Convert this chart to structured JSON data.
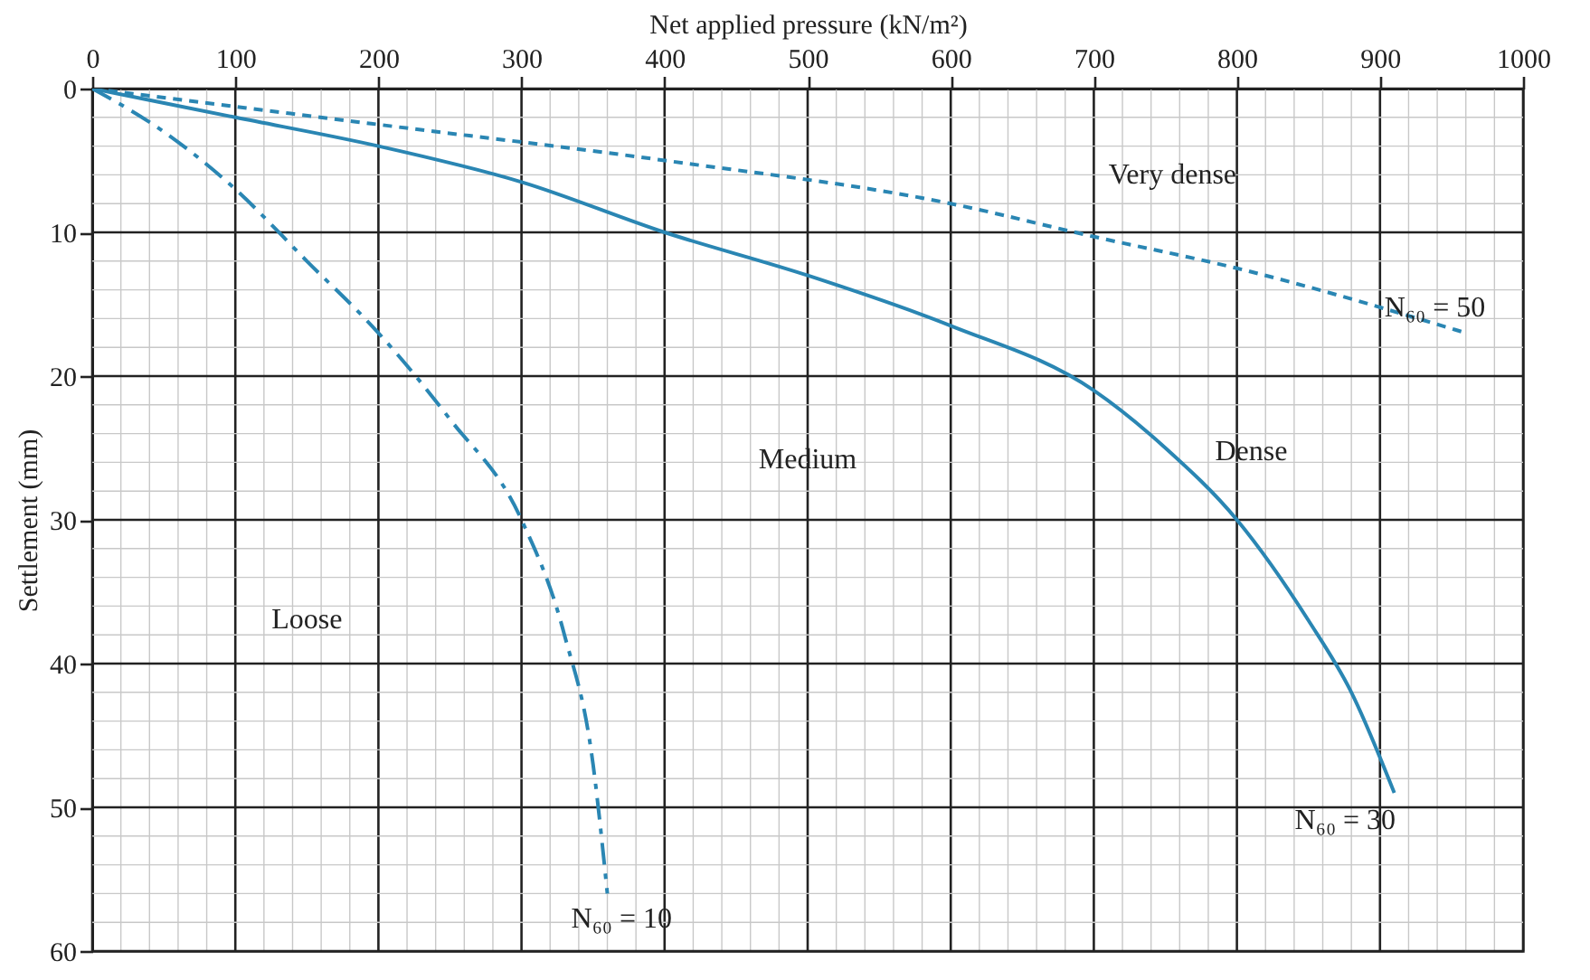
{
  "chart_data": {
    "type": "line",
    "xlabel": "Net applied pressure (kN/m²)",
    "ylabel": "Settlement (mm)",
    "xlim": [
      0,
      1000
    ],
    "ylim": [
      60,
      0
    ],
    "xticks": [
      0,
      {
        "value": 20,
        "label": null
      },
      {
        "value": 40,
        "label": null
      },
      {
        "value": 60,
        "label": null
      },
      {
        "value": 80,
        "label": null
      },
      100,
      {
        "value": 120,
        "label": null
      },
      {
        "value": 140,
        "label": null
      },
      {
        "value": 160,
        "label": null
      },
      {
        "value": 180,
        "label": null
      },
      200,
      {
        "value": 220,
        "label": null
      },
      {
        "value": 240,
        "label": null
      },
      {
        "value": 260,
        "label": null
      },
      {
        "value": 280,
        "label": null
      },
      300,
      {
        "value": 320,
        "label": null
      },
      {
        "value": 340,
        "label": null
      },
      {
        "value": 360,
        "label": null
      },
      {
        "value": 380,
        "label": null
      },
      400,
      {
        "value": 420,
        "label": null
      },
      {
        "value": 440,
        "label": null
      },
      {
        "value": 460,
        "label": null
      },
      {
        "value": 480,
        "label": null
      },
      500,
      {
        "value": 520,
        "label": null
      },
      {
        "value": 540,
        "label": null
      },
      {
        "value": 560,
        "label": null
      },
      {
        "value": 580,
        "label": null
      },
      600,
      {
        "value": 620,
        "label": null
      },
      {
        "value": 640,
        "label": null
      },
      {
        "value": 660,
        "label": null
      },
      {
        "value": 680,
        "label": null
      },
      700,
      {
        "value": 720,
        "label": null
      },
      {
        "value": 740,
        "label": null
      },
      {
        "value": 760,
        "label": null
      },
      {
        "value": 780,
        "label": null
      },
      800,
      {
        "value": 820,
        "label": null
      },
      {
        "value": 840,
        "label": null
      },
      {
        "value": 860,
        "label": null
      },
      {
        "value": 880,
        "label": null
      },
      900,
      {
        "value": 920,
        "label": null
      },
      {
        "value": 940,
        "label": null
      },
      {
        "value": 960,
        "label": null
      },
      {
        "value": 980,
        "label": null
      },
      1000
    ],
    "yticks": [
      0,
      {
        "value": 2,
        "label": null
      },
      {
        "value": 4,
        "label": null
      },
      {
        "value": 6,
        "label": null
      },
      {
        "value": 8,
        "label": null
      },
      10,
      {
        "value": 12,
        "label": null
      },
      {
        "value": 14,
        "label": null
      },
      {
        "value": 16,
        "label": null
      },
      {
        "value": 18,
        "label": null
      },
      20,
      {
        "value": 22,
        "label": null
      },
      {
        "value": 24,
        "label": null
      },
      {
        "value": 26,
        "label": null
      },
      {
        "value": 28,
        "label": null
      },
      30,
      {
        "value": 32,
        "label": null
      },
      {
        "value": 34,
        "label": null
      },
      {
        "value": 36,
        "label": null
      },
      {
        "value": 38,
        "label": null
      },
      40,
      {
        "value": 42,
        "label": null
      },
      {
        "value": 44,
        "label": null
      },
      {
        "value": 46,
        "label": null
      },
      {
        "value": 48,
        "label": null
      },
      50,
      {
        "value": 52,
        "label": null
      },
      {
        "value": 54,
        "label": null
      },
      {
        "value": 56,
        "label": null
      },
      {
        "value": 58,
        "label": null
      },
      60
    ],
    "grid": true,
    "series": [
      {
        "name": "N₆₀ = 50",
        "color": "#2a86b3",
        "line_style": "dotted",
        "x": [
          0,
          200,
          400,
          600,
          700,
          800,
          960
        ],
        "values": [
          0,
          2.5,
          5,
          8,
          10.3,
          12.5,
          17
        ]
      },
      {
        "name": "N₆₀ = 30",
        "color": "#2a86b3",
        "line_style": "solid",
        "x": [
          0,
          100,
          200,
          300,
          400,
          500,
          600,
          700,
          750,
          800,
          850,
          880,
          910
        ],
        "values": [
          0,
          2,
          4,
          6.5,
          10,
          13,
          16.5,
          21,
          25,
          30,
          37,
          42,
          49
        ]
      },
      {
        "name": "N₆₀ = 10",
        "color": "#2a86b3",
        "line_style": "dashed",
        "x": [
          0,
          50,
          100,
          150,
          200,
          250,
          300,
          330,
          350,
          360
        ],
        "values": [
          0,
          3,
          7,
          12,
          17,
          23,
          30,
          38,
          47,
          56
        ]
      }
    ],
    "annotations": [
      "Very dense",
      "Medium",
      "Dense",
      "Loose"
    ]
  }
}
